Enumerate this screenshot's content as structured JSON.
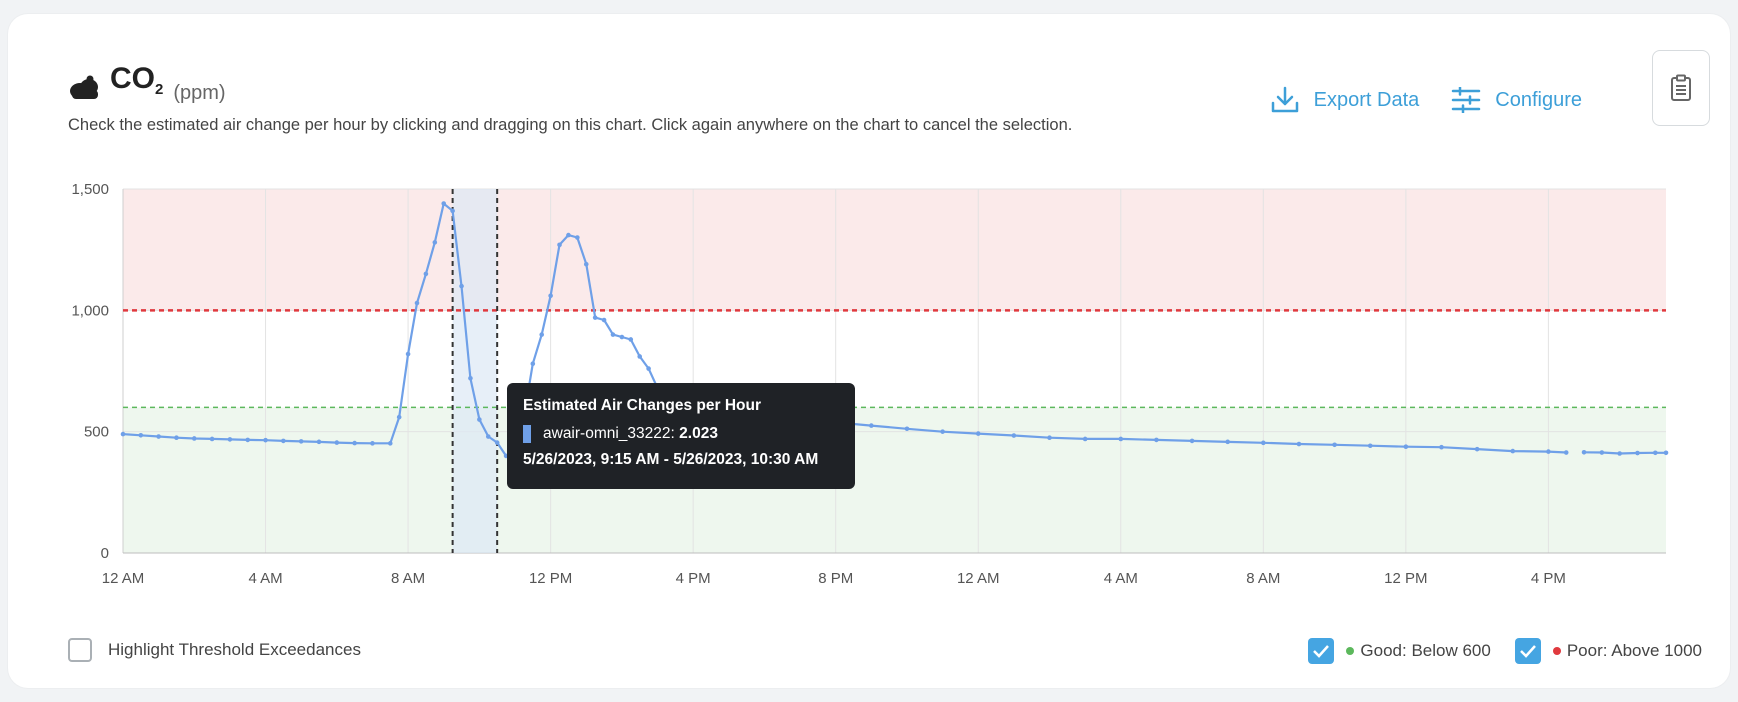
{
  "header": {
    "title_main": "CO",
    "title_sub": "2",
    "unit": "(ppm)",
    "subtitle": "Check the estimated air change per hour by clicking and dragging on this chart. Click again anywhere on the chart to cancel the selection.",
    "export_label": "Export Data",
    "configure_label": "Configure"
  },
  "icons": [
    "cloud-icon",
    "download-icon",
    "sliders-icon",
    "clipboard-icon",
    "check-icon"
  ],
  "colors": {
    "accent": "#3d9fd8",
    "series": "#6fa0e8",
    "good": "#5cb85c",
    "poor": "#e0393e",
    "poor_band": "#fbeaea",
    "good_band": "#eef7ee",
    "selection": "#dde8f5"
  },
  "tooltip": {
    "title": "Estimated Air Changes per Hour",
    "series_name": "awair-omni_33222",
    "value": "2.023",
    "range": "5/26/2023, 9:15 AM - 5/26/2023, 10:30 AM"
  },
  "footer": {
    "highlight_label": "Highlight Threshold Exceedances",
    "highlight_checked": false,
    "good_label": "Good: Below 600",
    "good_checked": true,
    "poor_label": "Poor: Above 1000",
    "poor_checked": true
  },
  "chart_data": {
    "type": "line",
    "xlabel": "",
    "ylabel": "",
    "ylim": [
      0,
      1500
    ],
    "yticks": [
      0,
      500,
      1000,
      1500
    ],
    "ytick_labels": [
      "0",
      "500",
      "1,000",
      "1,500"
    ],
    "xlim_hours": [
      0,
      43.3
    ],
    "xticks_hours": [
      0,
      4,
      8,
      12,
      16,
      20,
      24,
      28,
      32,
      36,
      40
    ],
    "xtick_labels": [
      "12 AM",
      "4 AM",
      "8 AM",
      "12 PM",
      "4 PM",
      "8 PM",
      "12 AM",
      "4 AM",
      "8 AM",
      "12 PM",
      "4 PM"
    ],
    "thresholds": [
      {
        "label": "Good: Below 600",
        "value": 600
      },
      {
        "label": "Poor: Above 1000",
        "value": 1000
      }
    ],
    "selection_hours": [
      9.25,
      10.5
    ],
    "series": [
      {
        "x_hours": [
          0,
          0.5,
          1,
          1.5,
          2,
          2.5,
          3,
          3.5,
          4,
          4.5,
          5,
          5.5,
          6,
          6.5,
          7,
          7.5,
          7.75,
          8,
          8.25,
          8.5,
          8.75,
          9,
          9.25,
          9.5,
          9.75,
          10,
          10.25,
          10.5,
          10.75,
          11,
          11.25,
          11.5,
          11.75,
          12,
          12.25,
          12.5,
          12.75,
          13,
          13.25,
          13.5,
          13.75,
          14,
          14.25,
          14.5,
          14.75,
          15,
          15.25,
          15.5,
          15.75,
          16,
          16.25,
          16.5,
          17,
          17.5,
          18,
          18.5,
          19,
          19.5,
          20,
          21,
          22,
          23,
          24,
          25,
          26,
          27,
          28,
          29,
          30,
          31,
          32,
          33,
          34,
          35,
          36,
          37,
          38,
          39,
          40,
          40.5
        ],
        "values": [
          490,
          485,
          480,
          475,
          472,
          470,
          468,
          466,
          465,
          462,
          460,
          458,
          455,
          453,
          452,
          452,
          560,
          820,
          1030,
          1150,
          1280,
          1440,
          1410,
          1100,
          720,
          550,
          480,
          455,
          400,
          410,
          560,
          780,
          900,
          1060,
          1270,
          1310,
          1300,
          1190,
          970,
          960,
          900,
          890,
          880,
          810,
          760,
          680,
          640,
          600,
          570,
          560,
          555,
          550,
          548,
          546,
          545,
          543,
          541,
          540,
          538,
          525,
          512,
          500,
          492,
          484,
          475,
          470,
          470,
          466,
          462,
          458,
          454,
          449,
          446,
          442,
          438,
          436,
          428,
          420,
          418,
          414
        ]
      },
      {
        "x_hours": [
          41,
          41.5,
          42,
          42.5,
          43,
          43.3
        ],
        "values": [
          415,
          414,
          410,
          412,
          413,
          413
        ]
      }
    ]
  }
}
